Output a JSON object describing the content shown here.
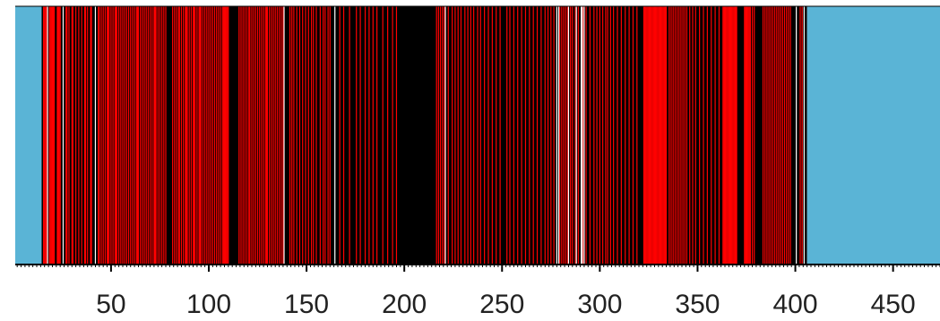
{
  "chart_data": {
    "type": "heatmap",
    "title": "",
    "xlabel": "",
    "ylabel": "",
    "xlim": [
      1,
      474
    ],
    "x_ticks": [
      50,
      100,
      150,
      200,
      250,
      300,
      350,
      400,
      450
    ],
    "x_tick_labels": [
      "50",
      "100",
      "150",
      "200",
      "250",
      "300",
      "350",
      "400",
      "450"
    ],
    "grid": false,
    "legend": "none",
    "colors": {
      "background": "#5ab4d6",
      "black": "#000000",
      "red": "#ff0000",
      "white": "#ffffff",
      "axis": "#000000",
      "tick_label": "#222222"
    },
    "cell_width": 0.55,
    "segments": [
      {
        "start": 1,
        "end": 14.5,
        "color": "background"
      },
      {
        "start": 14.5,
        "end": 406,
        "color": "black"
      },
      {
        "start": 406,
        "end": 474,
        "color": "background"
      }
    ],
    "bars": [
      {
        "color": "red",
        "positions": [
          15.5,
          16,
          16.5,
          17,
          18.5,
          19,
          19.5,
          20,
          20.5,
          21,
          22.5,
          23,
          23.5,
          24,
          27,
          27.5,
          28.5,
          30,
          30.5,
          32,
          33.5,
          35,
          36.5,
          37,
          38,
          39.5,
          40,
          43.5,
          44,
          45,
          46,
          47,
          48,
          48.5,
          49,
          50,
          51,
          52,
          52.5,
          53,
          54,
          55,
          56,
          57,
          58,
          59,
          60,
          61,
          62,
          63,
          63.5,
          64,
          65,
          66,
          67,
          68,
          69,
          70,
          71,
          72,
          72.5,
          73,
          74,
          75,
          76,
          77,
          78,
          81.5,
          82.5,
          83.5,
          84.5,
          85,
          86,
          87,
          88,
          88.5,
          89,
          90,
          91,
          92,
          92.5,
          93,
          94,
          95,
          95.5,
          96,
          97,
          98,
          99,
          100,
          101,
          102,
          103,
          104,
          105,
          106,
          107,
          107.5,
          108,
          108.5,
          109,
          109.5,
          110,
          115.5,
          116.5,
          117.5,
          118.5,
          119.5,
          120.5,
          121,
          122,
          123,
          124,
          125,
          126,
          127,
          128,
          129,
          129.5,
          130,
          131,
          132,
          133,
          134,
          135,
          136,
          137,
          138,
          141.5,
          142.5,
          143.5,
          145,
          146.5,
          148,
          149.5,
          151,
          152.5,
          153.5,
          155,
          157,
          158.5,
          159.5,
          161,
          162,
          167,
          169,
          172,
          175.5,
          177.5,
          180,
          182,
          184,
          186,
          189,
          191.5,
          194,
          196,
          216.5,
          217.5,
          218.5,
          219.5,
          220.5,
          222.5,
          224.5,
          226,
          227.5,
          229,
          231,
          232.5,
          234,
          235.5,
          237.5,
          239,
          241,
          243,
          245,
          247,
          249,
          252.5,
          254,
          256,
          258,
          260,
          262,
          264,
          266,
          268,
          270,
          272,
          273.5,
          275,
          276.5,
          279.5,
          280.5,
          281.5,
          282.5,
          283.5,
          285,
          286,
          287.5,
          289,
          291.5,
          293,
          295,
          297,
          298.5,
          300,
          301.5,
          303,
          304,
          305.5,
          307,
          309,
          311,
          313,
          315,
          317,
          319,
          322.5,
          323,
          323.5,
          324,
          324.5,
          325,
          325.5,
          326,
          326.5,
          327,
          327.5,
          328,
          328.5,
          329,
          329.5,
          330,
          330.5,
          331,
          331.5,
          332,
          332.5,
          333,
          333.5,
          334,
          335.5,
          336.5,
          337.5,
          338.5,
          339.5,
          340.5,
          341.5,
          342.5,
          343.5,
          344.5,
          346,
          347.5,
          349,
          351,
          353,
          355,
          357,
          359,
          361,
          363,
          363.5,
          364,
          364.5,
          365,
          365.5,
          366,
          366.5,
          367,
          367.5,
          368,
          368.5,
          369,
          369.5,
          370,
          374,
          374.5,
          375,
          375.5,
          376,
          376.5,
          377,
          378,
          379,
          383.5,
          384.5,
          385.5,
          386.5,
          387.5,
          388.5,
          389.5,
          390.5,
          391.5,
          392.5,
          393.5,
          394.5,
          395.5,
          396.5,
          397.5,
          402.5,
          403.5
        ]
      },
      {
        "color": "white",
        "positions": [
          17.5,
          25.5,
          42,
          138.5,
          164.5,
          221,
          278,
          279,
          284,
          288,
          290.5,
          291,
          292,
          400.5,
          404.5
        ]
      }
    ]
  }
}
